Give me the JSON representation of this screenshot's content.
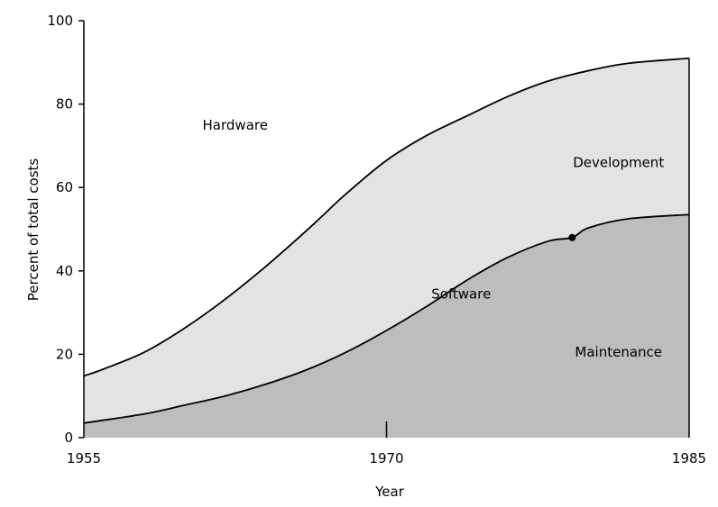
{
  "chart_data": {
    "type": "area",
    "title": "",
    "xlabel": "Year",
    "ylabel": "Percent of total costs",
    "xlim": [
      1955,
      1985
    ],
    "ylim": [
      0,
      100
    ],
    "x_ticks": [
      1955,
      1970,
      1985
    ],
    "y_ticks": [
      0,
      20,
      40,
      60,
      80,
      100
    ],
    "grid": false,
    "curves": {
      "software_total": {
        "x": [
          1955,
          1956,
          1958,
          1960,
          1962,
          1964,
          1966,
          1967,
          1968,
          1970,
          1972,
          1974,
          1976,
          1978,
          1980,
          1982,
          1985
        ],
        "y": [
          14.8,
          16.5,
          20.5,
          26.3,
          33.2,
          41.0,
          49.5,
          54.0,
          58.5,
          66.5,
          72.5,
          77.2,
          81.8,
          85.5,
          88.0,
          89.8,
          91.0
        ]
      },
      "maintenance": {
        "x": [
          1955,
          1958,
          1960,
          1962,
          1964,
          1966,
          1968,
          1970,
          1972,
          1974,
          1976,
          1978,
          1979.2,
          1980,
          1982,
          1985
        ],
        "y": [
          3.5,
          5.7,
          7.8,
          10.0,
          12.8,
          16.2,
          20.5,
          25.7,
          31.5,
          37.8,
          43.2,
          47.1,
          48.0,
          50.3,
          52.5,
          53.5
        ]
      }
    },
    "regions": [
      {
        "name": "Hardware",
        "label_at": [
          1962.5,
          75
        ],
        "fill": "#ffffff"
      },
      {
        "name": "Development",
        "label_at": [
          1981.5,
          66
        ],
        "fill": "#e3e3e3"
      },
      {
        "name": "Maintenance",
        "label_at": [
          1981.5,
          20.5
        ],
        "fill": "#bdbdbd"
      }
    ],
    "annotations": [
      {
        "text": "Software",
        "at": [
          1973.7,
          34.5
        ]
      }
    ],
    "marker": {
      "x": 1979.2,
      "y": 48
    }
  }
}
